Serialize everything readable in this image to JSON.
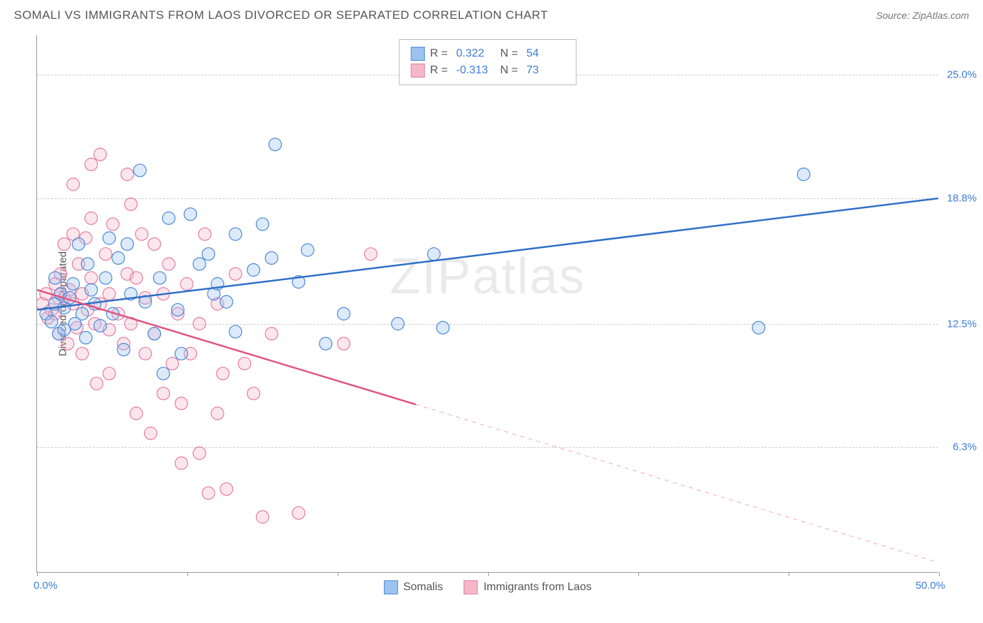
{
  "title": "SOMALI VS IMMIGRANTS FROM LAOS DIVORCED OR SEPARATED CORRELATION CHART",
  "source": "Source: ZipAtlas.com",
  "watermark_left": "ZIP",
  "watermark_right": "atlas",
  "y_axis_title": "Divorced or Separated",
  "chart": {
    "type": "scatter",
    "xlim": [
      0,
      50
    ],
    "ylim": [
      0,
      27
    ],
    "x_ticks": [
      0,
      8.33,
      16.67,
      25,
      33.33,
      41.67,
      50
    ],
    "y_gridlines": [
      6.3,
      12.5,
      18.8,
      25.0
    ],
    "y_tick_labels": [
      "6.3%",
      "12.5%",
      "18.8%",
      "25.0%"
    ],
    "x_origin_label": "0.0%",
    "x_end_label": "50.0%",
    "background_color": "#ffffff",
    "grid_color": "#cccccc",
    "marker_radius": 9,
    "marker_fill_opacity": 0.35,
    "marker_stroke_width": 1.2,
    "line_width": 2.5,
    "series": [
      {
        "name": "Somalis",
        "color_fill": "#9dc3f0",
        "color_stroke": "#4a88d6",
        "line_color": "#2f6fc7",
        "R": "0.322",
        "N": "54",
        "regression": {
          "x1": 0,
          "y1": 13.2,
          "x2": 50,
          "y2": 18.8,
          "solid_end_x": 50
        },
        "points": [
          [
            0.5,
            13.0
          ],
          [
            0.8,
            12.6
          ],
          [
            1.0,
            13.5
          ],
          [
            1.2,
            12.0
          ],
          [
            1.3,
            14.0
          ],
          [
            1.5,
            13.3
          ],
          [
            1.8,
            13.8
          ],
          [
            2.0,
            14.5
          ],
          [
            2.1,
            12.5
          ],
          [
            2.3,
            16.5
          ],
          [
            2.5,
            13.0
          ],
          [
            2.7,
            11.8
          ],
          [
            3.0,
            14.2
          ],
          [
            3.2,
            13.5
          ],
          [
            3.5,
            12.4
          ],
          [
            4.0,
            16.8
          ],
          [
            4.2,
            13.0
          ],
          [
            4.5,
            15.8
          ],
          [
            5.0,
            16.5
          ],
          [
            5.2,
            14.0
          ],
          [
            5.7,
            20.2
          ],
          [
            6.0,
            13.6
          ],
          [
            6.5,
            12.0
          ],
          [
            7.0,
            10.0
          ],
          [
            7.3,
            17.8
          ],
          [
            7.8,
            13.2
          ],
          [
            8.0,
            11.0
          ],
          [
            8.5,
            18.0
          ],
          [
            9.0,
            15.5
          ],
          [
            9.5,
            16.0
          ],
          [
            10.0,
            14.5
          ],
          [
            10.5,
            13.6
          ],
          [
            11.0,
            17.0
          ],
          [
            11.0,
            12.1
          ],
          [
            12.0,
            15.2
          ],
          [
            12.5,
            17.5
          ],
          [
            13.0,
            15.8
          ],
          [
            13.2,
            21.5
          ],
          [
            14.5,
            14.6
          ],
          [
            15.0,
            16.2
          ],
          [
            16.0,
            11.5
          ],
          [
            17.0,
            13.0
          ],
          [
            20.0,
            12.5
          ],
          [
            22.0,
            16.0
          ],
          [
            22.5,
            12.3
          ],
          [
            40.0,
            12.3
          ],
          [
            42.5,
            20.0
          ],
          [
            1.5,
            12.2
          ],
          [
            3.8,
            14.8
          ],
          [
            2.8,
            15.5
          ],
          [
            1.0,
            14.8
          ],
          [
            6.8,
            14.8
          ],
          [
            4.8,
            11.2
          ],
          [
            9.8,
            14.0
          ]
        ]
      },
      {
        "name": "Immigrants from Laos",
        "color_fill": "#f5b8cb",
        "color_stroke": "#e77aa0",
        "line_color": "#e0547f",
        "R": "-0.313",
        "N": "73",
        "regression": {
          "x1": 0,
          "y1": 14.2,
          "x2": 50,
          "y2": 0.5,
          "solid_end_x": 21
        },
        "points": [
          [
            0.3,
            13.5
          ],
          [
            0.5,
            14.0
          ],
          [
            0.6,
            12.8
          ],
          [
            0.8,
            13.2
          ],
          [
            1.0,
            14.5
          ],
          [
            1.0,
            13.0
          ],
          [
            1.2,
            12.0
          ],
          [
            1.3,
            15.0
          ],
          [
            1.5,
            13.8
          ],
          [
            1.5,
            16.5
          ],
          [
            1.7,
            11.5
          ],
          [
            1.8,
            14.2
          ],
          [
            2.0,
            13.5
          ],
          [
            2.0,
            17.0
          ],
          [
            2.2,
            12.3
          ],
          [
            2.3,
            15.5
          ],
          [
            2.5,
            14.0
          ],
          [
            2.5,
            11.0
          ],
          [
            2.7,
            16.8
          ],
          [
            2.8,
            13.2
          ],
          [
            3.0,
            14.8
          ],
          [
            3.0,
            20.5
          ],
          [
            3.2,
            12.5
          ],
          [
            3.3,
            9.5
          ],
          [
            3.5,
            21.0
          ],
          [
            3.5,
            13.5
          ],
          [
            3.8,
            16.0
          ],
          [
            4.0,
            14.0
          ],
          [
            4.0,
            10.0
          ],
          [
            4.2,
            17.5
          ],
          [
            4.5,
            13.0
          ],
          [
            4.8,
            11.5
          ],
          [
            5.0,
            15.0
          ],
          [
            5.0,
            20.0
          ],
          [
            5.2,
            12.5
          ],
          [
            5.5,
            14.8
          ],
          [
            5.5,
            8.0
          ],
          [
            5.8,
            17.0
          ],
          [
            6.0,
            11.0
          ],
          [
            6.0,
            13.8
          ],
          [
            6.3,
            7.0
          ],
          [
            6.5,
            16.5
          ],
          [
            6.5,
            12.0
          ],
          [
            7.0,
            14.0
          ],
          [
            7.0,
            9.0
          ],
          [
            7.3,
            15.5
          ],
          [
            7.5,
            10.5
          ],
          [
            7.8,
            13.0
          ],
          [
            8.0,
            5.5
          ],
          [
            8.0,
            8.5
          ],
          [
            8.3,
            14.5
          ],
          [
            8.5,
            11.0
          ],
          [
            9.0,
            12.5
          ],
          [
            9.0,
            6.0
          ],
          [
            9.3,
            17.0
          ],
          [
            9.5,
            4.0
          ],
          [
            10.0,
            13.5
          ],
          [
            10.0,
            8.0
          ],
          [
            10.3,
            10.0
          ],
          [
            10.5,
            4.2
          ],
          [
            11.0,
            15.0
          ],
          [
            11.5,
            10.5
          ],
          [
            12.0,
            9.0
          ],
          [
            12.5,
            2.8
          ],
          [
            13.0,
            12.0
          ],
          [
            14.5,
            3.0
          ],
          [
            17.0,
            11.5
          ],
          [
            18.5,
            16.0
          ],
          [
            1.2,
            13.8
          ],
          [
            2.0,
            19.5
          ],
          [
            3.0,
            17.8
          ],
          [
            4.0,
            12.2
          ],
          [
            5.2,
            18.5
          ]
        ]
      }
    ]
  },
  "legend_labels": {
    "series1": "Somalis",
    "series2": "Immigrants from Laos"
  },
  "correl_labels": {
    "R": "R =",
    "N": "N ="
  }
}
